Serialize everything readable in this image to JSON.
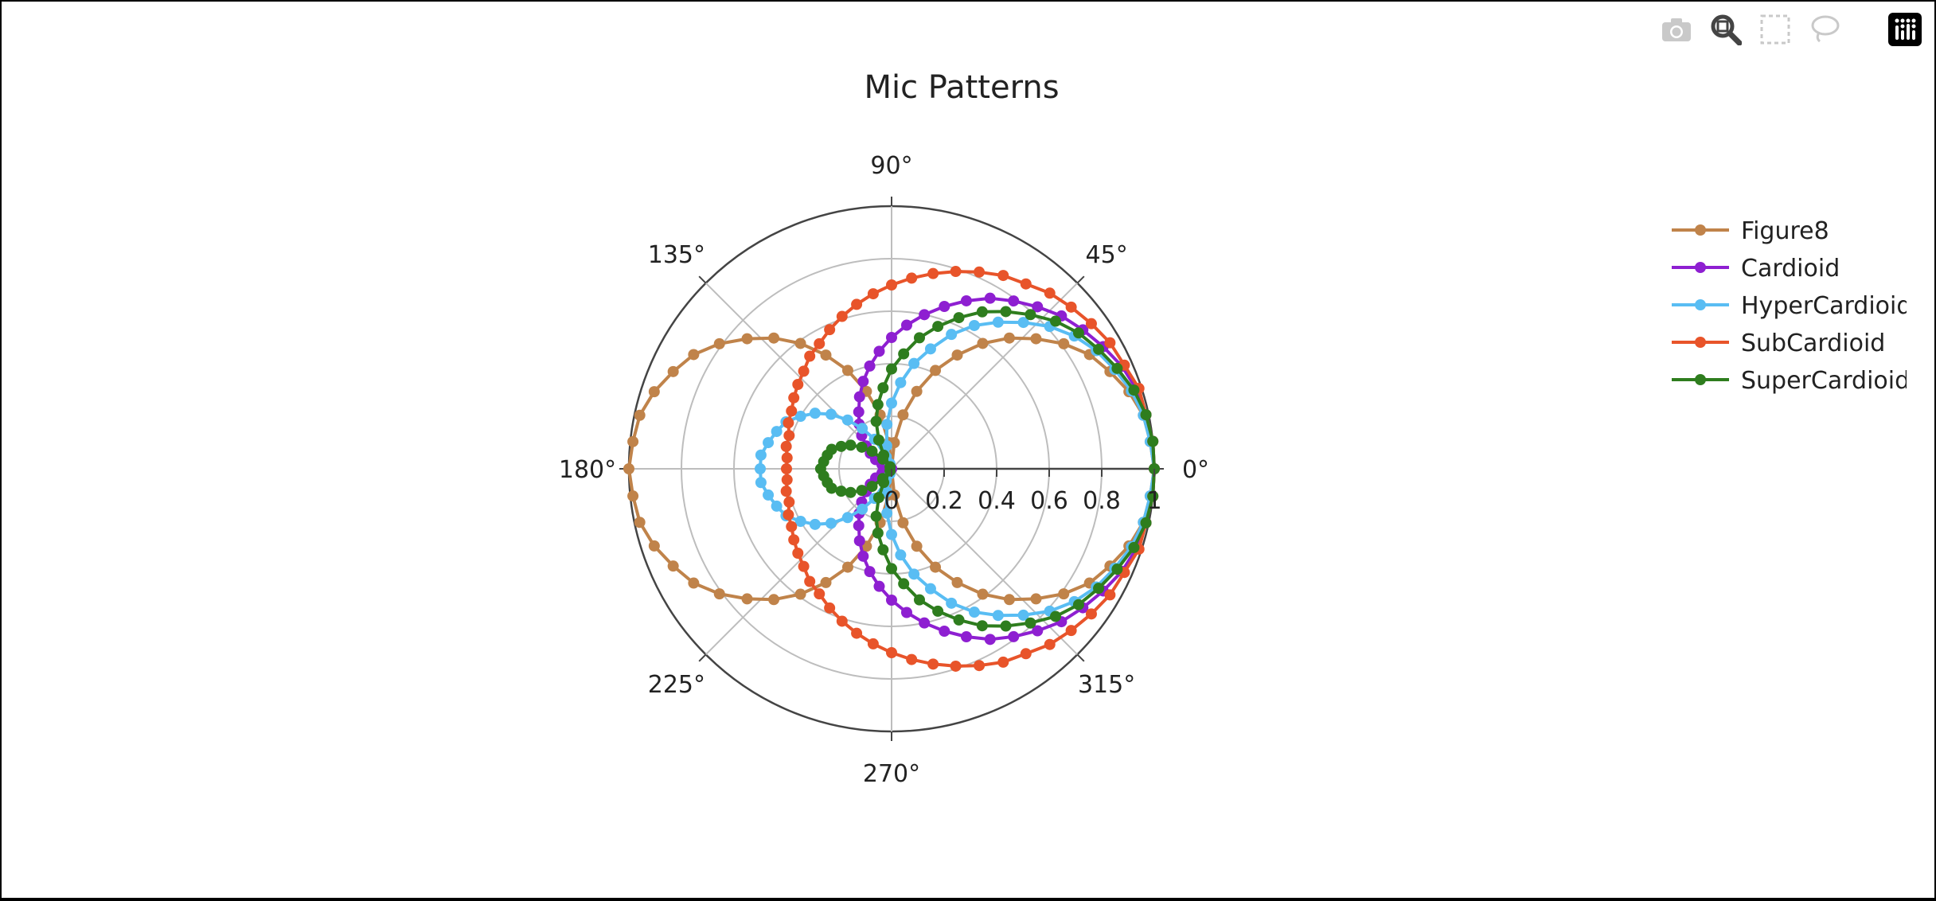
{
  "toolbar": {
    "icons": [
      "camera-icon",
      "zoom-icon",
      "box-select-icon",
      "lasso-select-icon",
      "plotly-logo-icon"
    ]
  },
  "colors": {
    "Figure8": "#c0834a",
    "Cardioid": "#8e1fd1",
    "HyperCardioid": "#59bdf3",
    "SubCardioid": "#e8542a",
    "SuperCardioid": "#2e7d1e"
  },
  "chart_data": {
    "type": "polar-line",
    "title": "Mic Patterns",
    "theta_unit": "degrees",
    "theta_step": 6,
    "theta": [
      0,
      6,
      12,
      18,
      24,
      30,
      36,
      42,
      48,
      54,
      60,
      66,
      72,
      78,
      84,
      90,
      96,
      102,
      108,
      114,
      120,
      126,
      132,
      138,
      144,
      150,
      156,
      162,
      168,
      174,
      180,
      186,
      192,
      198,
      204,
      210,
      216,
      222,
      228,
      234,
      240,
      246,
      252,
      258,
      264,
      270,
      276,
      282,
      288,
      294,
      300,
      306,
      312,
      318,
      324,
      330,
      336,
      342,
      348,
      354
    ],
    "angular_ticks": [
      "0°",
      "45°",
      "90°",
      "135°",
      "180°",
      "225°",
      "270°",
      "315°"
    ],
    "radial_ticks": [
      "0",
      "0.2",
      "0.4",
      "0.6",
      "0.8",
      "1"
    ],
    "radial_range": [
      0,
      1
    ],
    "legend_position": "right",
    "series": [
      {
        "name": "Figure8",
        "r": [
          1,
          0.99,
          0.98,
          0.95,
          0.91,
          0.87,
          0.81,
          0.74,
          0.67,
          0.59,
          0.5,
          0.41,
          0.31,
          0.21,
          0.1,
          0,
          0.1,
          0.21,
          0.31,
          0.41,
          0.5,
          0.59,
          0.67,
          0.74,
          0.81,
          0.87,
          0.91,
          0.95,
          0.98,
          0.99,
          1,
          0.99,
          0.98,
          0.95,
          0.91,
          0.87,
          0.81,
          0.74,
          0.67,
          0.59,
          0.5,
          0.41,
          0.31,
          0.21,
          0.1,
          0,
          0.1,
          0.21,
          0.31,
          0.41,
          0.5,
          0.59,
          0.67,
          0.74,
          0.81,
          0.87,
          0.91,
          0.95,
          0.98,
          0.99
        ]
      },
      {
        "name": "Cardioid",
        "r": [
          1,
          1,
          0.99,
          0.98,
          0.96,
          0.93,
          0.9,
          0.87,
          0.83,
          0.79,
          0.75,
          0.7,
          0.65,
          0.6,
          0.55,
          0.5,
          0.45,
          0.4,
          0.35,
          0.3,
          0.25,
          0.21,
          0.17,
          0.13,
          0.1,
          0.07,
          0.04,
          0.02,
          0.01,
          0,
          0,
          0,
          0.01,
          0.02,
          0.04,
          0.07,
          0.1,
          0.13,
          0.17,
          0.21,
          0.25,
          0.3,
          0.35,
          0.4,
          0.45,
          0.5,
          0.55,
          0.6,
          0.65,
          0.7,
          0.75,
          0.79,
          0.83,
          0.87,
          0.9,
          0.93,
          0.96,
          0.98,
          0.99,
          1
        ]
      },
      {
        "name": "HyperCardioid",
        "r": [
          1,
          0.99,
          0.98,
          0.96,
          0.93,
          0.9,
          0.86,
          0.81,
          0.75,
          0.69,
          0.63,
          0.56,
          0.48,
          0.41,
          0.33,
          0.25,
          0.17,
          0.09,
          0.02,
          0.05,
          0.13,
          0.19,
          0.25,
          0.31,
          0.36,
          0.4,
          0.44,
          0.46,
          0.48,
          0.5,
          0.5,
          0.5,
          0.48,
          0.46,
          0.44,
          0.4,
          0.36,
          0.31,
          0.25,
          0.19,
          0.13,
          0.05,
          0.02,
          0.09,
          0.17,
          0.25,
          0.33,
          0.41,
          0.48,
          0.56,
          0.63,
          0.69,
          0.75,
          0.81,
          0.86,
          0.9,
          0.93,
          0.96,
          0.98,
          0.99
        ]
      },
      {
        "name": "SubCardioid",
        "r": [
          1,
          1,
          0.99,
          0.99,
          0.97,
          0.96,
          0.94,
          0.92,
          0.9,
          0.87,
          0.85,
          0.82,
          0.79,
          0.76,
          0.73,
          0.7,
          0.67,
          0.64,
          0.61,
          0.58,
          0.55,
          0.53,
          0.5,
          0.48,
          0.46,
          0.44,
          0.43,
          0.41,
          0.41,
          0.4,
          0.4,
          0.4,
          0.41,
          0.41,
          0.43,
          0.44,
          0.46,
          0.48,
          0.5,
          0.53,
          0.55,
          0.58,
          0.61,
          0.64,
          0.67,
          0.7,
          0.73,
          0.76,
          0.79,
          0.82,
          0.85,
          0.87,
          0.9,
          0.92,
          0.94,
          0.96,
          0.97,
          0.99,
          0.99,
          1
        ]
      },
      {
        "name": "SuperCardioid",
        "r": [
          1,
          1,
          0.99,
          0.97,
          0.94,
          0.91,
          0.88,
          0.84,
          0.79,
          0.74,
          0.69,
          0.63,
          0.57,
          0.51,
          0.44,
          0.38,
          0.31,
          0.25,
          0.19,
          0.12,
          0.06,
          0.01,
          0.05,
          0.1,
          0.14,
          0.18,
          0.21,
          0.24,
          0.25,
          0.26,
          0.27,
          0.26,
          0.25,
          0.24,
          0.21,
          0.18,
          0.14,
          0.1,
          0.05,
          0.01,
          0.06,
          0.12,
          0.19,
          0.25,
          0.31,
          0.38,
          0.44,
          0.51,
          0.57,
          0.63,
          0.69,
          0.74,
          0.79,
          0.84,
          0.88,
          0.91,
          0.94,
          0.97,
          0.99,
          1
        ]
      }
    ]
  }
}
